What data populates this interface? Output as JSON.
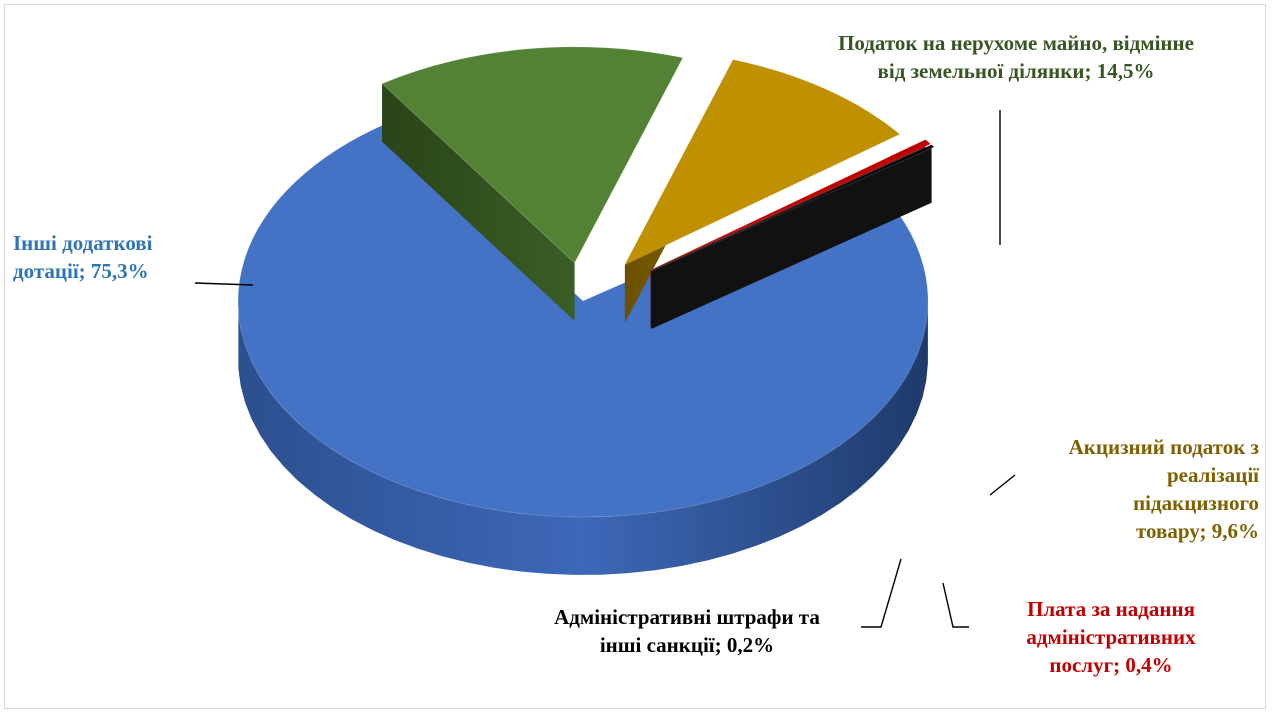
{
  "chart_data": {
    "type": "pie",
    "title": "",
    "slices": [
      {
        "name": "Інші додаткові дотації",
        "value": 75.3,
        "label_lines": [
          "Інші додаткові",
          "дотації; 75,3%"
        ],
        "color": "#4472C4"
      },
      {
        "name": "Податок на нерухоме майно, відмінне від земельної ділянки",
        "value": 14.5,
        "label_lines": [
          "Податок на нерухоме майно, відмінне",
          "від земельної ділянки; 14,5%"
        ],
        "color": "#548235"
      },
      {
        "name": "Акцизний податок з реалізації підакцизного товару",
        "value": 9.6,
        "label_lines": [
          "Акцизний податок з",
          "реалізації",
          "підакцизного",
          "товару; 9,6%"
        ],
        "color": "#BF9000"
      },
      {
        "name": "Плата за надання адміністративних послуг",
        "value": 0.4,
        "label_lines": [
          "Плата за надання",
          "адміністративних",
          "послуг; 0,4%"
        ],
        "color": "#C00000"
      },
      {
        "name": "Адміністративні штрафи та інші санкції",
        "value": 0.2,
        "label_lines": [
          "Адміністративні штрафи та",
          "інші санкції; 0,2%"
        ],
        "color": "#000000"
      }
    ],
    "label_colors": [
      "#2E75B6",
      "#375623",
      "#7F6000",
      "#C00000",
      "#000000"
    ],
    "legend": "none",
    "style": "3d-exploded"
  }
}
